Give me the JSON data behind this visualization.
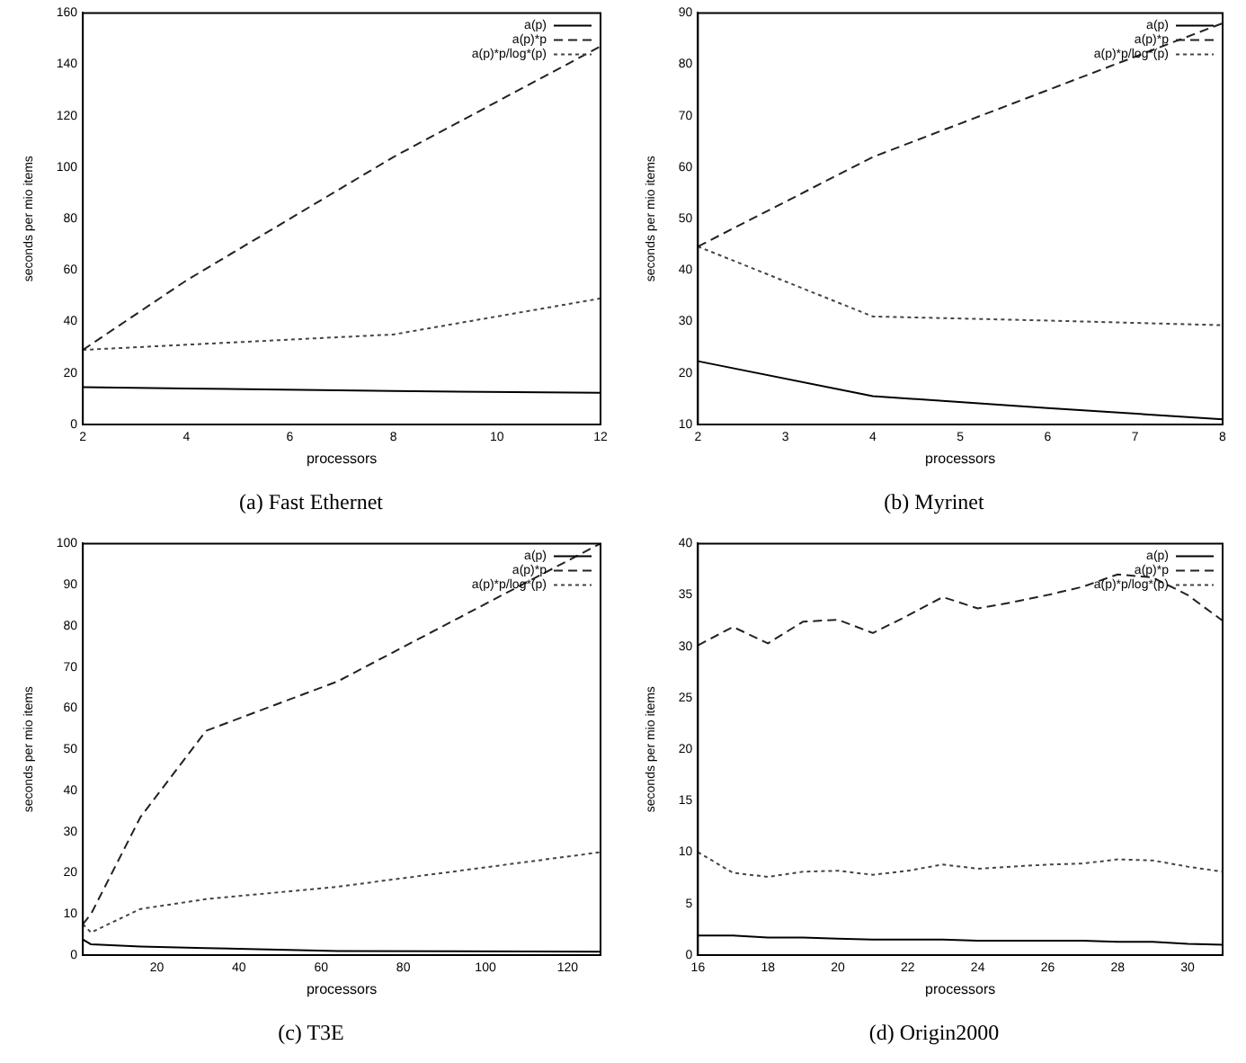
{
  "chart_data": [
    {
      "type": "line",
      "title": "(a) Fast Ethernet",
      "xlabel": "processors",
      "ylabel": "seconds per mio items",
      "x": [
        2,
        4,
        8,
        12
      ],
      "series": [
        {
          "name": "a(p)",
          "color": "#000000",
          "line_style": "solid",
          "values": [
            14.5,
            14,
            13,
            12.3
          ]
        },
        {
          "name": "a(p)*p",
          "color": "#222222",
          "line_style": "dashed",
          "values": [
            29,
            56,
            104,
            147
          ]
        },
        {
          "name": "a(p)*p/log*(p)",
          "color": "#444444",
          "line_style": "dotted",
          "values": [
            29,
            31,
            35,
            49
          ]
        }
      ],
      "xlim": [
        2,
        12
      ],
      "xticks": [
        2,
        4,
        6,
        8,
        10,
        12
      ],
      "ylim": [
        0,
        160
      ],
      "yticks": [
        0,
        20,
        40,
        60,
        80,
        100,
        120,
        140,
        160
      ],
      "grid": false,
      "legend": "top right",
      "marker": "none"
    },
    {
      "type": "line",
      "title": "(b) Myrinet",
      "xlabel": "processors",
      "ylabel": "seconds per mio items",
      "x": [
        2,
        4,
        6,
        8
      ],
      "series": [
        {
          "name": "a(p)",
          "color": "#000000",
          "line_style": "solid",
          "values": [
            22.3,
            15.5,
            13.2,
            11
          ]
        },
        {
          "name": "a(p)*p",
          "color": "#222222",
          "line_style": "dashed",
          "values": [
            44.6,
            62,
            75,
            88
          ]
        },
        {
          "name": "a(p)*p/log*(p)",
          "color": "#444444",
          "line_style": "dotted",
          "values": [
            44.6,
            31,
            30.2,
            29.3
          ]
        }
      ],
      "xlim": [
        2,
        8
      ],
      "xticks": [
        2,
        3,
        4,
        5,
        6,
        7,
        8
      ],
      "ylim": [
        10,
        90
      ],
      "yticks": [
        10,
        20,
        30,
        40,
        50,
        60,
        70,
        80,
        90
      ],
      "grid": false,
      "legend": "top right",
      "marker": "none"
    },
    {
      "type": "line",
      "title": "(c) T3E",
      "xlabel": "processors",
      "ylabel": "seconds per mio items",
      "x": [
        2,
        4,
        16,
        32,
        64,
        128
      ],
      "series": [
        {
          "name": "a(p)",
          "color": "#000000",
          "line_style": "solid",
          "values": [
            3.8,
            2.6,
            2.1,
            1.7,
            1.0,
            0.8
          ]
        },
        {
          "name": "a(p)*p",
          "color": "#222222",
          "line_style": "dashed",
          "values": [
            7.5,
            10,
            33.5,
            54.5,
            66.5,
            100
          ]
        },
        {
          "name": "a(p)*p/log*(p)",
          "color": "#444444",
          "line_style": "dotted",
          "values": [
            7.5,
            5.5,
            11.2,
            13.6,
            16.6,
            25
          ]
        }
      ],
      "xlim": [
        2,
        128
      ],
      "xticks": [
        20,
        40,
        60,
        80,
        100,
        120
      ],
      "ylim": [
        0,
        100
      ],
      "yticks": [
        0,
        10,
        20,
        30,
        40,
        50,
        60,
        70,
        80,
        90,
        100
      ],
      "grid": false,
      "legend": "top right",
      "marker": "none"
    },
    {
      "type": "line",
      "title": "(d) Origin2000",
      "xlabel": "processors",
      "ylabel": "seconds per mio items",
      "x": [
        16,
        17,
        18,
        19,
        20,
        21,
        22,
        23,
        24,
        25,
        26,
        27,
        28,
        29,
        30,
        31
      ],
      "series": [
        {
          "name": "a(p)",
          "color": "#000000",
          "line_style": "solid",
          "values": [
            1.9,
            1.9,
            1.7,
            1.7,
            1.6,
            1.5,
            1.5,
            1.5,
            1.4,
            1.4,
            1.4,
            1.4,
            1.3,
            1.3,
            1.1,
            1.0
          ]
        },
        {
          "name": "a(p)*p",
          "color": "#222222",
          "line_style": "dashed",
          "values": [
            30.1,
            31.9,
            30.3,
            32.4,
            32.6,
            31.3,
            33,
            34.8,
            33.7,
            34.3,
            35,
            35.8,
            37,
            36.7,
            35,
            32.5
          ]
        },
        {
          "name": "a(p)*p/log*(p)",
          "color": "#444444",
          "line_style": "dotted",
          "values": [
            10,
            8,
            7.6,
            8.1,
            8.2,
            7.8,
            8.2,
            8.8,
            8.4,
            8.6,
            8.8,
            8.9,
            9.3,
            9.2,
            8.6,
            8.1
          ]
        }
      ],
      "xlim": [
        16,
        31
      ],
      "xticks": [
        16,
        18,
        20,
        22,
        24,
        26,
        28,
        30
      ],
      "ylim": [
        0,
        40
      ],
      "yticks": [
        0,
        5,
        10,
        15,
        20,
        25,
        30,
        35,
        40
      ],
      "grid": false,
      "legend": "top right",
      "marker": "none"
    }
  ]
}
